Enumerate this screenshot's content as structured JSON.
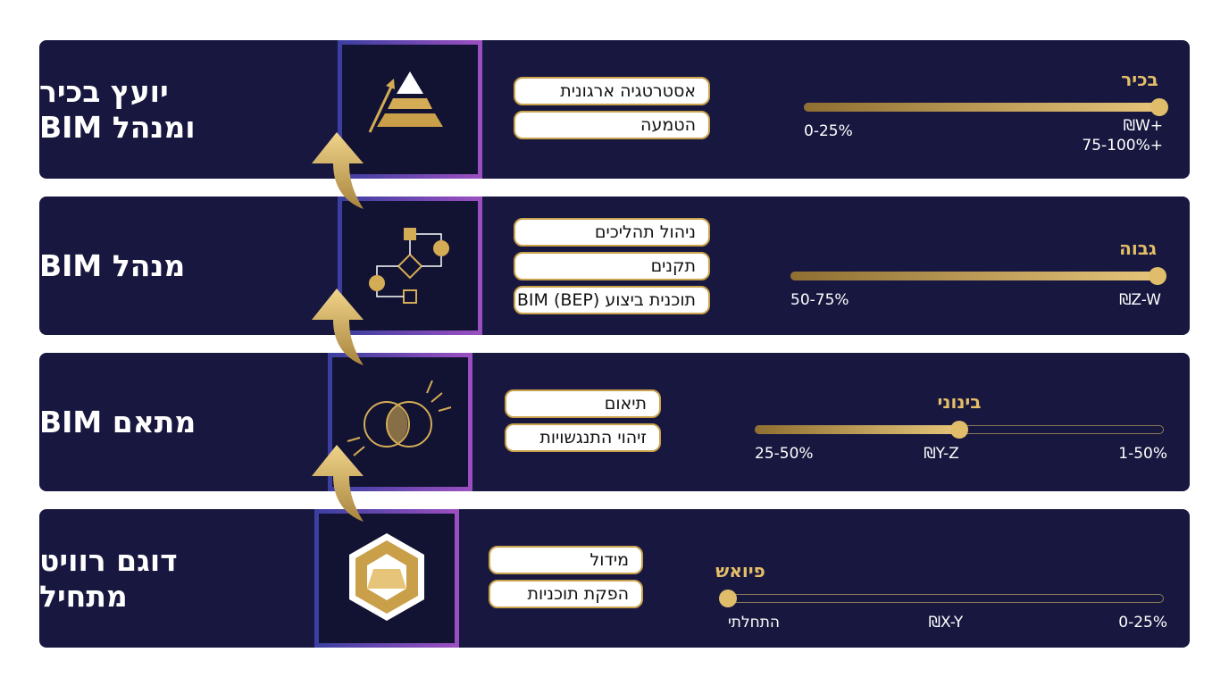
{
  "rows": [
    {
      "title": [
        "יועץ בכיר",
        "ומנהל BIM"
      ],
      "tags": [
        "אסטרטגיה ארגונית",
        "הטמעה"
      ],
      "level": "בכיר",
      "labels": {
        "left": "0-25%",
        "right_top": "₪W+",
        "right": "75-100%+"
      }
    },
    {
      "title": [
        "מנהל BIM"
      ],
      "tags": [
        "ניהול תהליכים",
        "תקנים",
        "תוכנית ביצוע BIM (BEP)"
      ],
      "level": "גבוה",
      "labels": {
        "left": "50-75%",
        "right": "₪Z-W"
      }
    },
    {
      "title": [
        "מתאם BIM"
      ],
      "tags": [
        "תיאום",
        "זיהוי התנגשויות"
      ],
      "level": "בינוני",
      "labels": {
        "left": "25-50%",
        "middle": "₪Y-Z",
        "right": "1-50%"
      }
    },
    {
      "title": [
        "דוגם רוויט",
        "מתחיל"
      ],
      "tags": [
        "מידול",
        "הפקת תוכניות"
      ],
      "level": "פיואש",
      "labels": {
        "left": "התחלתי",
        "middle": "₪X-Y",
        "right": "0-25%"
      }
    }
  ]
}
